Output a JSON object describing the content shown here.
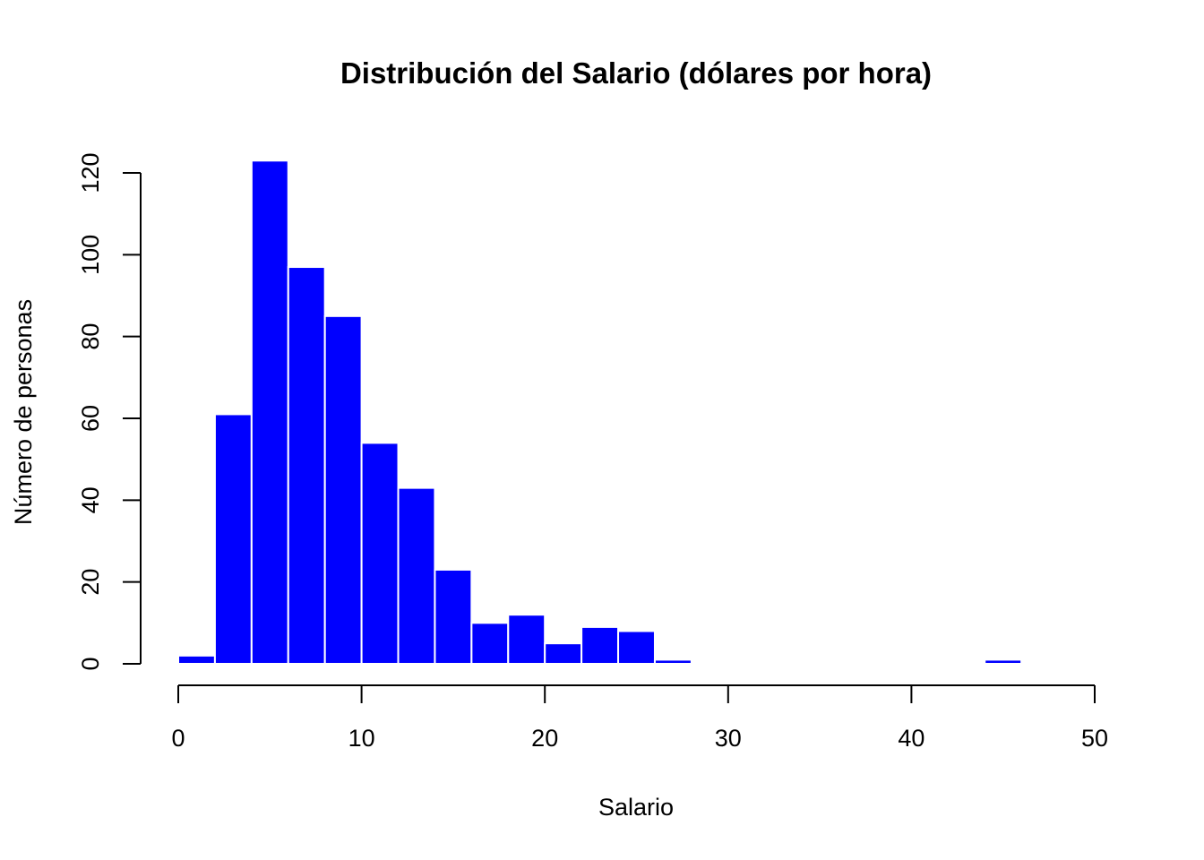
{
  "chart_data": {
    "type": "bar",
    "title": "Distribución del Salario (dólares por hora)",
    "xlabel": "Salario",
    "ylabel": "Número de personas",
    "bin_edges": [
      0,
      2,
      4,
      6,
      8,
      10,
      12,
      14,
      16,
      18,
      20,
      22,
      24,
      26,
      28,
      30,
      32,
      34,
      36,
      38,
      40,
      42,
      44,
      46
    ],
    "values": [
      2,
      61,
      123,
      97,
      85,
      54,
      43,
      23,
      10,
      12,
      5,
      9,
      8,
      1,
      0,
      0,
      0,
      0,
      0,
      0,
      0,
      0,
      1
    ],
    "xlim": [
      0,
      50
    ],
    "ylim": [
      0,
      120
    ],
    "xticks": [
      "0",
      "10",
      "20",
      "30",
      "40",
      "50"
    ],
    "yticks": [
      "0",
      "20",
      "40",
      "60",
      "80",
      "100",
      "120"
    ],
    "bar_color": "#0000ff",
    "grid": false,
    "legend": "none"
  }
}
